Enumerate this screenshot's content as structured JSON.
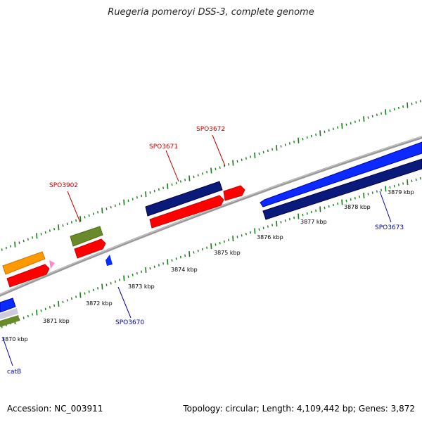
{
  "title": "Ruegeria pomeroyi DSS-3, complete genome",
  "accession": "Accession: NC_003911",
  "summary": "Topology: circular; Length: 4,109,442 bp; Genes: 3,872",
  "scale": {
    "ticks": [
      "3870 kbp",
      "3871 kbp",
      "3872 kbp",
      "3873 kbp",
      "3874 kbp",
      "3875 kbp",
      "3876 kbp",
      "3877 kbp",
      "3878 kbp",
      "3879 kbp"
    ]
  },
  "gene_labels": {
    "top": [
      "SPO3902",
      "SPO3671",
      "SPO3672"
    ],
    "bottom": [
      "catB",
      "SPO3670",
      "SPO3673"
    ]
  },
  "colors": {
    "forward_label": "#cc0000",
    "reverse_label": "#0000aa",
    "backbone": "#888888",
    "tick": "#1a7a1a",
    "red": "#ff0000",
    "navy": "#0a1a7a",
    "blue": "#0a2aff",
    "olive": "#6a8a2a",
    "orange": "#ff9900",
    "pink": "#ff88cc"
  }
}
